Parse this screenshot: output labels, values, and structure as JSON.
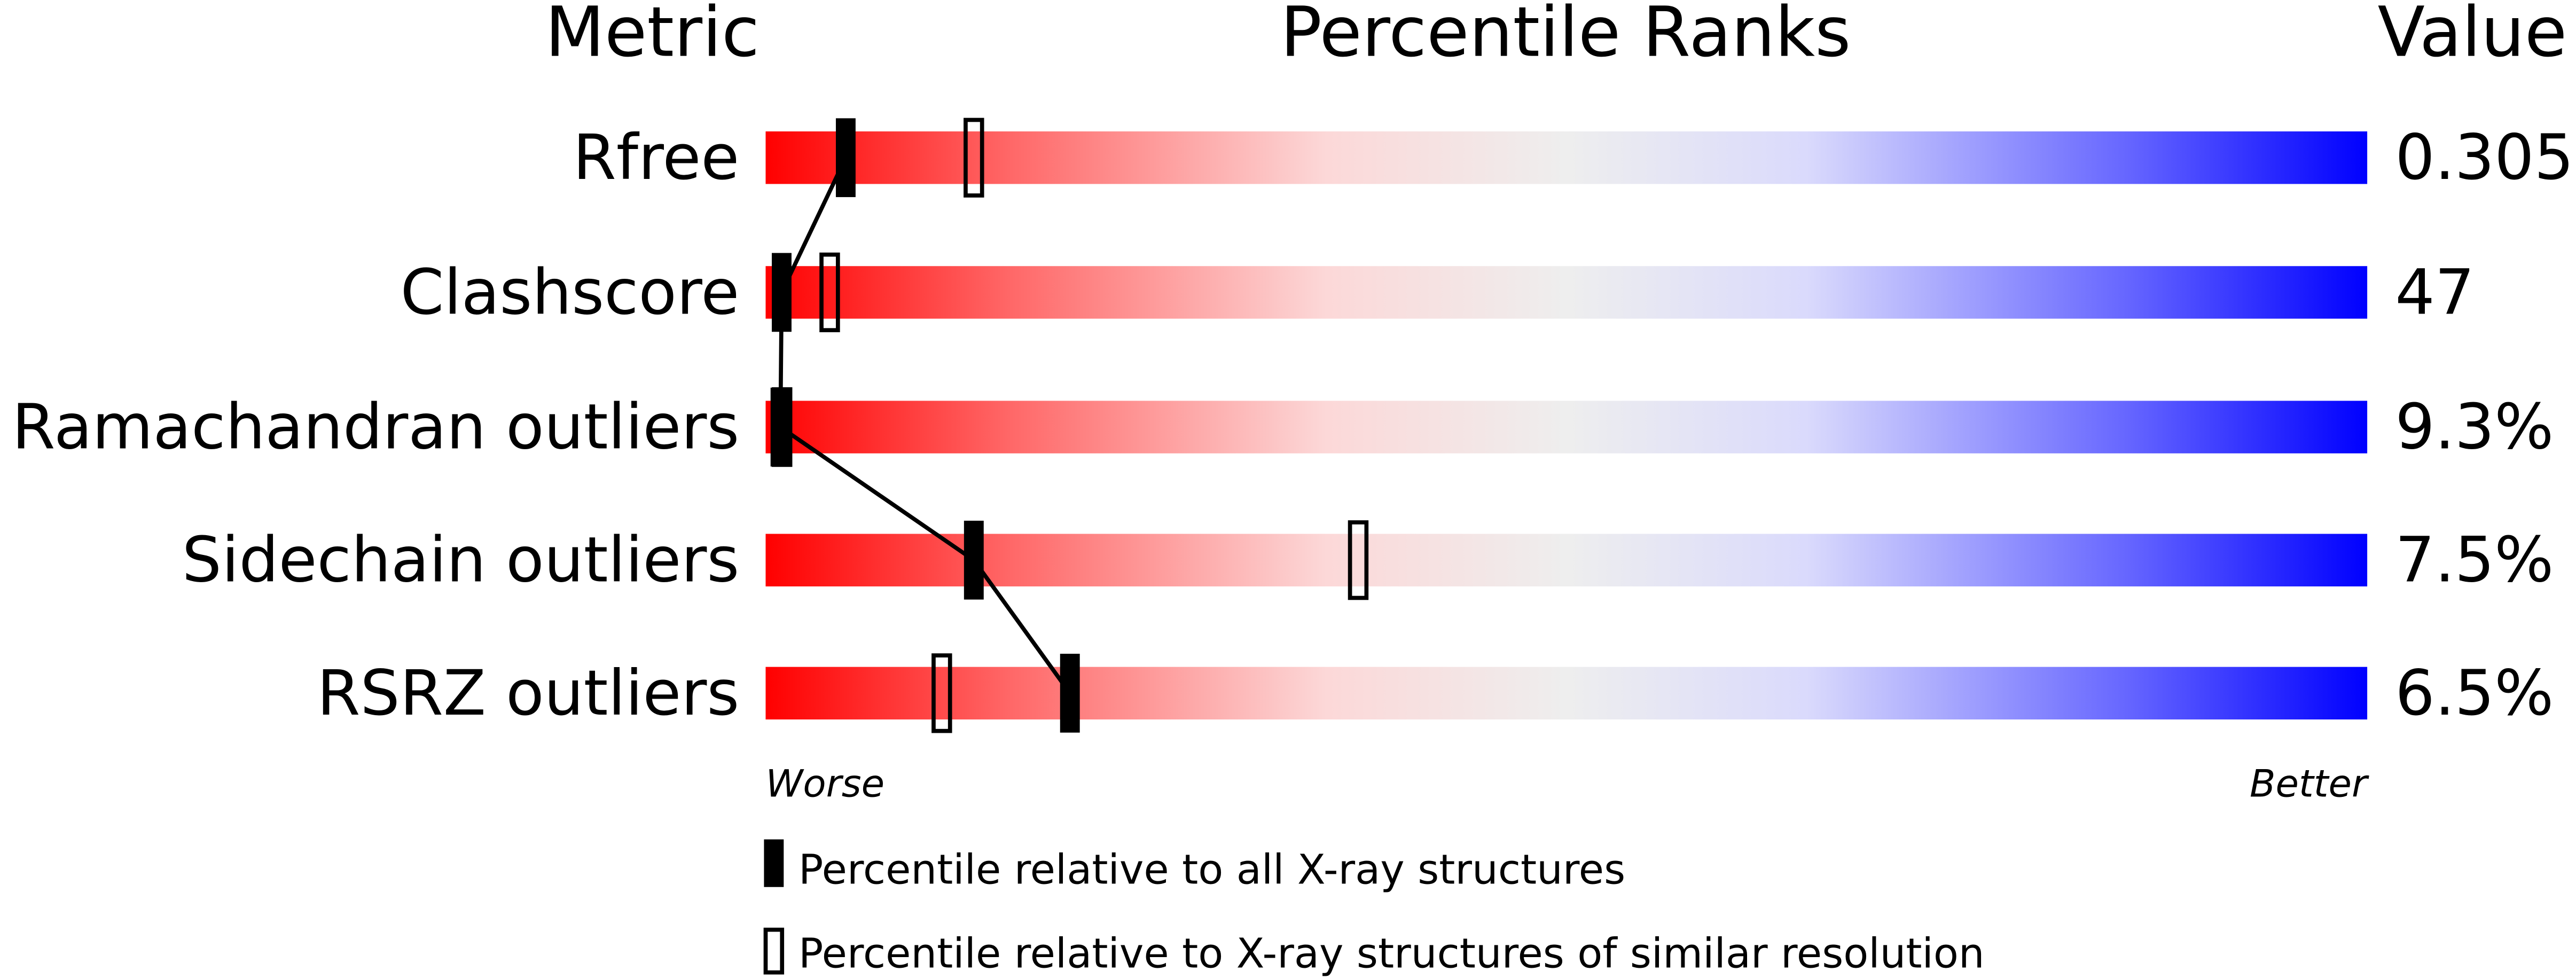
{
  "chart_data": {
    "type": "percentile-slider",
    "headers": {
      "metric": "Metric",
      "ranks": "Percentile Ranks",
      "value": "Value"
    },
    "xlim": [
      0,
      100
    ],
    "axis_left_label": "Worse",
    "axis_right_label": "Better",
    "colors": {
      "worse": "#ff0000",
      "middle": "#eeeeee",
      "better": "#0000ff",
      "marker": "#000000"
    },
    "rows": [
      {
        "metric": "Rfree",
        "value": "0.305",
        "percentile_all": 5,
        "percentile_similar": 13
      },
      {
        "metric": "Clashscore",
        "value": "47",
        "percentile_all": 1,
        "percentile_similar": 4
      },
      {
        "metric": "Ramachandran outliers",
        "value": "9.3%",
        "percentile_all": 0,
        "percentile_similar": 1
      },
      {
        "metric": "Sidechain outliers",
        "value": "7.5%",
        "percentile_all": 13,
        "percentile_similar": 37
      },
      {
        "metric": "RSRZ outliers",
        "value": "6.5%",
        "percentile_all": 19,
        "percentile_similar": 11
      }
    ],
    "legend": [
      {
        "marker": "filled",
        "label": "Percentile relative to all X-ray structures"
      },
      {
        "marker": "open",
        "label": "Percentile relative to X-ray structures of similar resolution"
      }
    ]
  }
}
